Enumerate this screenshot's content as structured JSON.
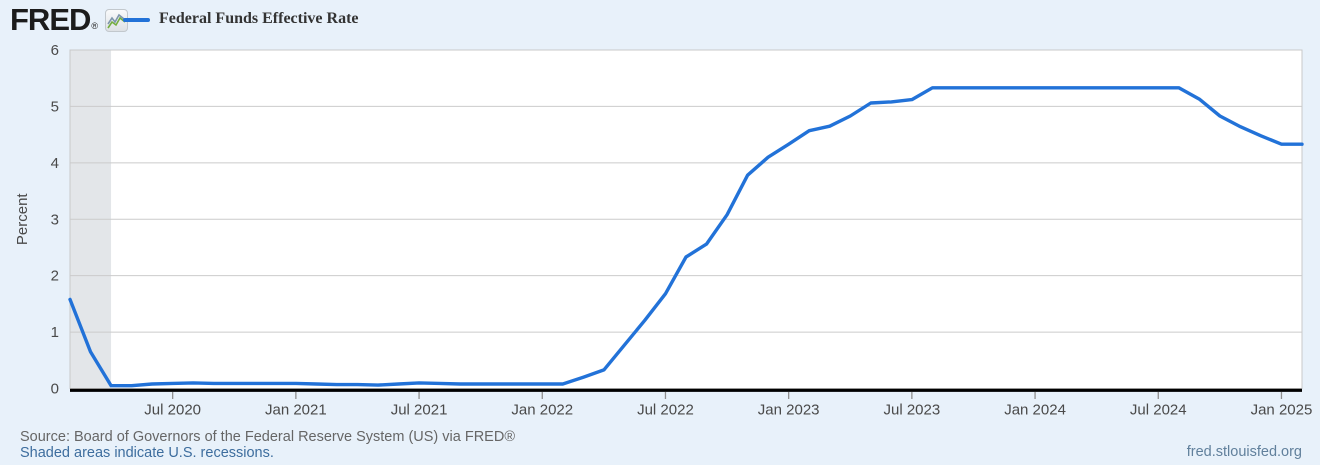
{
  "header": {
    "brand": "FRED",
    "registered_mark": "®"
  },
  "legend": {
    "label": "Federal Funds Effective Rate"
  },
  "footer": {
    "source_line": "Source: Board of Governors of the Federal Reserve System (US) via FRED®",
    "recession_note": "Shaded areas indicate U.S. recessions.",
    "site_link": "fred.stlouisfed.org"
  },
  "colors": {
    "page_bg": "#e8f1fa",
    "plot_bg": "#ffffff",
    "grid": "#cbcbcb",
    "plot_border": "#c9c9c9",
    "axis": "#000000",
    "tick": "#8e8e8e",
    "tick_label": "#4a4a4a",
    "line": "#2272d8",
    "recession_fill": "#e3e6e9",
    "source_text": "#666666",
    "link": "#3d6d9e",
    "site_link": "#61809c",
    "legend_text": "#333333",
    "logo": "#1c1c1c",
    "icon_line_blue": "#7e96ab",
    "icon_line_green": "#74ad3f"
  },
  "chart_data": {
    "type": "line",
    "title": "Federal Funds Effective Rate",
    "series_name": "Federal Funds Effective Rate",
    "xlabel": "",
    "ylabel": "Percent",
    "ylim": [
      0,
      6
    ],
    "y_ticks": [
      0,
      1,
      2,
      3,
      4,
      5,
      6
    ],
    "grid": true,
    "legend_position": "top-left",
    "x_start": "2020-02",
    "x_end": "2025-02",
    "x": [
      "2020-02",
      "2020-03",
      "2020-04",
      "2020-05",
      "2020-06",
      "2020-07",
      "2020-08",
      "2020-09",
      "2020-10",
      "2020-11",
      "2020-12",
      "2021-01",
      "2021-02",
      "2021-03",
      "2021-04",
      "2021-05",
      "2021-06",
      "2021-07",
      "2021-08",
      "2021-09",
      "2021-10",
      "2021-11",
      "2021-12",
      "2022-01",
      "2022-02",
      "2022-03",
      "2022-04",
      "2022-05",
      "2022-06",
      "2022-07",
      "2022-08",
      "2022-09",
      "2022-10",
      "2022-11",
      "2022-12",
      "2023-01",
      "2023-02",
      "2023-03",
      "2023-04",
      "2023-05",
      "2023-06",
      "2023-07",
      "2023-08",
      "2023-09",
      "2023-10",
      "2023-11",
      "2023-12",
      "2024-01",
      "2024-02",
      "2024-03",
      "2024-04",
      "2024-05",
      "2024-06",
      "2024-07",
      "2024-08",
      "2024-09",
      "2024-10",
      "2024-11",
      "2024-12",
      "2025-01",
      "2025-02"
    ],
    "values": [
      1.58,
      0.65,
      0.05,
      0.05,
      0.08,
      0.09,
      0.1,
      0.09,
      0.09,
      0.09,
      0.09,
      0.09,
      0.08,
      0.07,
      0.07,
      0.06,
      0.08,
      0.1,
      0.09,
      0.08,
      0.08,
      0.08,
      0.08,
      0.08,
      0.08,
      0.2,
      0.33,
      0.77,
      1.21,
      1.68,
      2.33,
      2.56,
      3.08,
      3.78,
      4.1,
      4.33,
      4.57,
      4.65,
      4.83,
      5.06,
      5.08,
      5.12,
      5.33,
      5.33,
      5.33,
      5.33,
      5.33,
      5.33,
      5.33,
      5.33,
      5.33,
      5.33,
      5.33,
      5.33,
      5.33,
      5.13,
      4.83,
      4.64,
      4.48,
      4.33,
      4.33
    ],
    "x_ticks": [
      {
        "label": "Jul 2020",
        "index": 5
      },
      {
        "label": "Jan 2021",
        "index": 11
      },
      {
        "label": "Jul 2021",
        "index": 17
      },
      {
        "label": "Jan 2022",
        "index": 23
      },
      {
        "label": "Jul 2022",
        "index": 29
      },
      {
        "label": "Jan 2023",
        "index": 35
      },
      {
        "label": "Jul 2023",
        "index": 41
      },
      {
        "label": "Jan 2024",
        "index": 47
      },
      {
        "label": "Jul 2024",
        "index": 53
      },
      {
        "label": "Jan 2025",
        "index": 59
      }
    ],
    "recessions": [
      {
        "start": "2020-02",
        "end": "2020-04",
        "start_index": 0,
        "end_index": 2
      }
    ]
  }
}
